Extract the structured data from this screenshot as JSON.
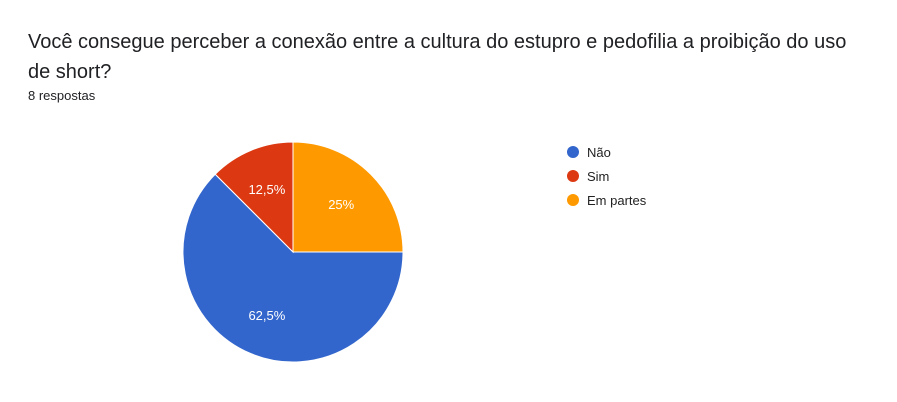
{
  "question": {
    "title": "Você consegue perceber a conexão entre a cultura do estupro e pedofilia a proibição do uso de short?",
    "responses": "8 respostas"
  },
  "chart_data": {
    "type": "pie",
    "categories": [
      "Não",
      "Sim",
      "Em partes"
    ],
    "values": [
      62.5,
      12.5,
      25
    ],
    "data_labels": [
      "62,5%",
      "12,5%",
      "25%"
    ],
    "colors": [
      "#3366cc",
      "#dc3912",
      "#ff9900"
    ],
    "legend_position": "right"
  }
}
